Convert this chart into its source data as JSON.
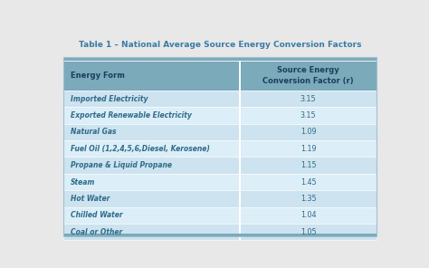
{
  "title": "Table 1 – National Average Source Energy Conversion Factors",
  "title_color": "#3a7ca5",
  "title_fontsize": 6.5,
  "header": [
    "Energy Form",
    "Source Energy\nConversion Factor (r)"
  ],
  "rows": [
    [
      "Imported Electricity",
      "3.15"
    ],
    [
      "Exported Renewable Electricity",
      "3.15"
    ],
    [
      "Natural Gas",
      "1.09"
    ],
    [
      "Fuel Oil (1,2,4,5,6,Diesel, Kerosene)",
      "1.19"
    ],
    [
      "Propane & Liquid Propane",
      "1.15"
    ],
    [
      "Steam",
      "1.45"
    ],
    [
      "Hot Water",
      "1.35"
    ],
    [
      "Chilled Water",
      "1.04"
    ],
    [
      "Coal or Other",
      "1.05"
    ]
  ],
  "header_bg": "#7baabb",
  "row_bg_even": "#cde3ef",
  "row_bg_odd": "#dceef7",
  "text_color": "#2e6b8a",
  "header_text_color": "#1a3f5c",
  "divider_color": "#ffffff",
  "outer_bg": "#e8e8e8",
  "table_border_color": "#a0c0d0",
  "col_split": 0.565
}
